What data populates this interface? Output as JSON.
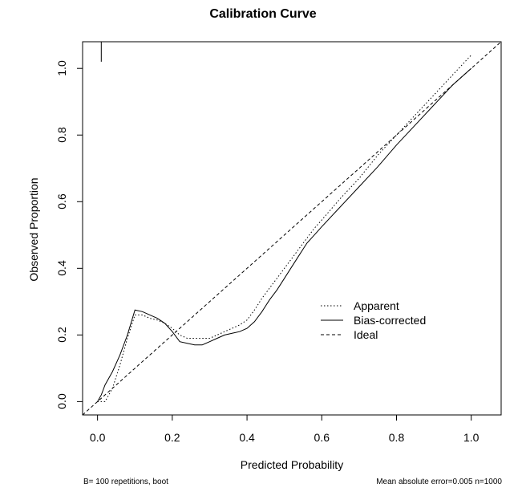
{
  "chart_data": {
    "type": "line",
    "title": "Calibration Curve",
    "xlabel": "Predicted Probability",
    "ylabel": "Observed Proportion",
    "xlim": [
      -0.04,
      1.08
    ],
    "ylim": [
      -0.04,
      1.08
    ],
    "grid": false,
    "legend_position": "bottom-right",
    "xticks": [
      0.0,
      0.2,
      0.4,
      0.6,
      0.8,
      1.0
    ],
    "xtick_labels": [
      "0.0",
      "0.2",
      "0.4",
      "0.6",
      "0.8",
      "1.0"
    ],
    "yticks": [
      0.0,
      0.2,
      0.4,
      0.6,
      0.8,
      1.0
    ],
    "ytick_labels": [
      "0.0",
      "0.2",
      "0.4",
      "0.6",
      "0.8",
      "1.0"
    ],
    "series": [
      {
        "name": "Apparent",
        "style": "dotted",
        "x": [
          0.0,
          0.01,
          0.02,
          0.04,
          0.06,
          0.08,
          0.1,
          0.12,
          0.14,
          0.16,
          0.18,
          0.2,
          0.22,
          0.24,
          0.26,
          0.28,
          0.3,
          0.32,
          0.34,
          0.36,
          0.38,
          0.4,
          0.42,
          0.44,
          0.46,
          0.48,
          0.5,
          0.52,
          0.54,
          0.56,
          0.58,
          0.6,
          0.65,
          0.7,
          0.75,
          0.8,
          0.85,
          0.9,
          0.95,
          1.0
        ],
        "y": [
          0.0,
          0.0,
          0.0,
          0.04,
          0.11,
          0.19,
          0.26,
          0.26,
          0.25,
          0.245,
          0.235,
          0.22,
          0.2,
          0.19,
          0.19,
          0.19,
          0.19,
          0.2,
          0.21,
          0.22,
          0.23,
          0.245,
          0.275,
          0.31,
          0.34,
          0.37,
          0.4,
          0.43,
          0.46,
          0.49,
          0.52,
          0.545,
          0.61,
          0.67,
          0.74,
          0.8,
          0.86,
          0.92,
          0.98,
          1.04
        ]
      },
      {
        "name": "Bias-corrected",
        "style": "solid",
        "x": [
          0.0,
          0.01,
          0.02,
          0.04,
          0.06,
          0.08,
          0.1,
          0.12,
          0.14,
          0.16,
          0.18,
          0.2,
          0.22,
          0.24,
          0.26,
          0.28,
          0.3,
          0.32,
          0.34,
          0.36,
          0.38,
          0.4,
          0.42,
          0.44,
          0.46,
          0.48,
          0.5,
          0.52,
          0.54,
          0.56,
          0.58,
          0.6,
          0.65,
          0.7,
          0.75,
          0.8,
          0.85,
          0.9,
          0.95,
          1.0
        ],
        "y": [
          0.0,
          0.02,
          0.05,
          0.09,
          0.14,
          0.2,
          0.275,
          0.27,
          0.26,
          0.25,
          0.235,
          0.21,
          0.18,
          0.175,
          0.17,
          0.17,
          0.18,
          0.19,
          0.2,
          0.205,
          0.21,
          0.22,
          0.24,
          0.27,
          0.305,
          0.335,
          0.37,
          0.405,
          0.44,
          0.475,
          0.5,
          0.525,
          0.585,
          0.645,
          0.705,
          0.77,
          0.83,
          0.89,
          0.95,
          1.0
        ]
      },
      {
        "name": "Ideal",
        "style": "dashed",
        "x": [
          -0.04,
          1.08
        ],
        "y": [
          -0.04,
          1.08
        ]
      }
    ],
    "rug": [
      {
        "x": 0.01,
        "y0": 1.02,
        "y1": 1.08
      }
    ]
  },
  "footer": {
    "left": "B= 100 repetitions, boot",
    "right": "Mean absolute error=0.005 n=1000"
  }
}
